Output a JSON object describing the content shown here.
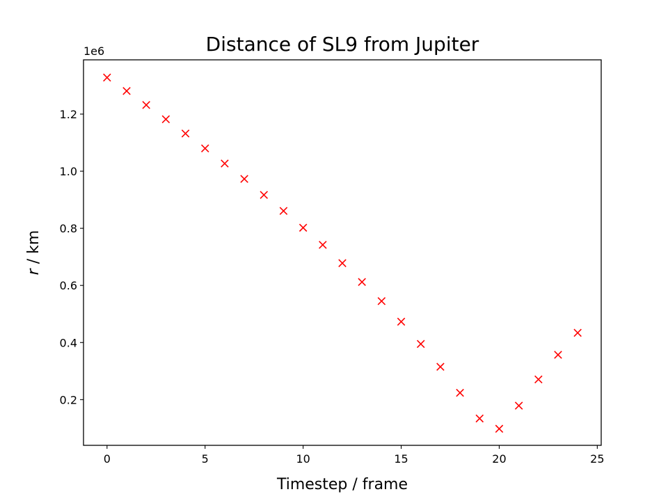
{
  "chart_data": {
    "type": "scatter",
    "title": "Distance of SL9 from Jupiter",
    "xlabel": "Timestep / frame",
    "ylabel_var": "r",
    "ylabel_unit": " / km",
    "y_offset_label": "1e6",
    "xlim": [
      -1.2,
      25.2
    ],
    "ylim": [
      0.04,
      1.39
    ],
    "x_ticks": [
      0,
      5,
      10,
      15,
      20,
      25
    ],
    "x_tick_labels": [
      "0",
      "5",
      "10",
      "15",
      "20",
      "25"
    ],
    "y_ticks": [
      0.2,
      0.4,
      0.6,
      0.8,
      1.0,
      1.2
    ],
    "y_tick_labels": [
      "0.2",
      "0.4",
      "0.6",
      "0.8",
      "1.0",
      "1.2"
    ],
    "grid": false,
    "marker": "x",
    "marker_color": "#ff0000",
    "series": [
      {
        "x": [
          0,
          1,
          2,
          3,
          4,
          5,
          6,
          7,
          8,
          9,
          10,
          11,
          12,
          13,
          14,
          15,
          16,
          17,
          18,
          19,
          20,
          21,
          22,
          23,
          24
        ],
        "y": [
          1.328,
          1.281,
          1.232,
          1.182,
          1.132,
          1.08,
          1.027,
          0.973,
          0.917,
          0.861,
          0.802,
          0.742,
          0.678,
          0.612,
          0.545,
          0.473,
          0.395,
          0.315,
          0.224,
          0.134,
          0.098,
          0.179,
          0.271,
          0.357,
          0.434
        ]
      }
    ]
  }
}
